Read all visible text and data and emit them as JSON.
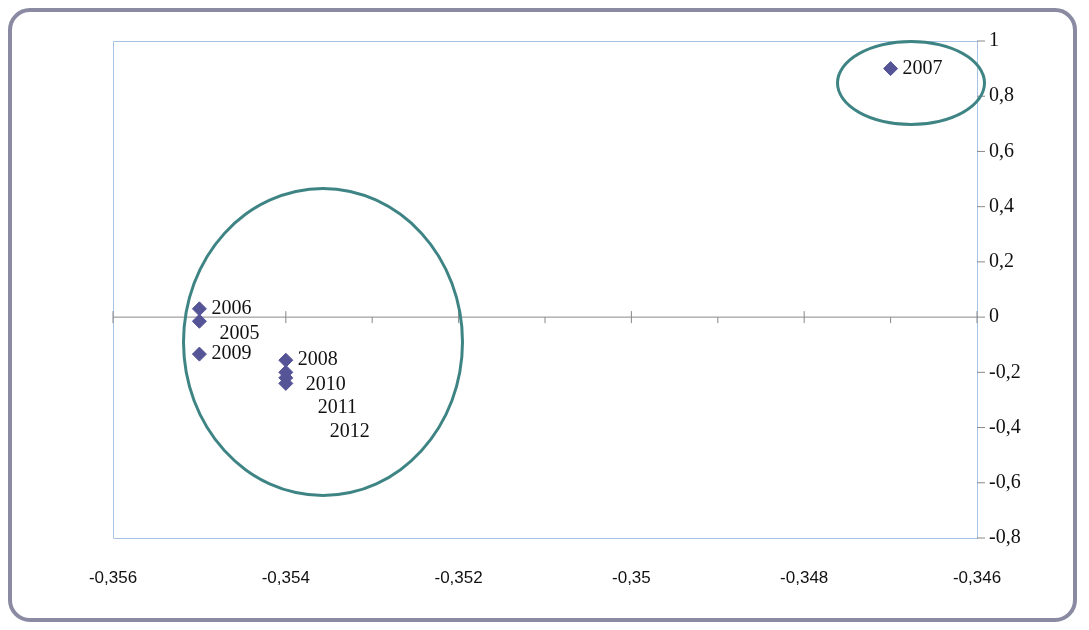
{
  "chart_data": {
    "type": "scatter",
    "x": [
      -0.355,
      -0.355,
      -0.347,
      -0.354,
      -0.355,
      -0.354,
      -0.354,
      -0.354
    ],
    "values": [
      -0.015,
      0.03,
      0.9,
      -0.156,
      -0.134,
      -0.2,
      -0.22,
      -0.24
    ],
    "color": "#545497",
    "ref_lines": [
      {
        "axis": "y",
        "value": 0,
        "color": "#888888"
      }
    ],
    "marker": "diamond",
    "grid": false,
    "legend": false,
    "xlim": [
      -0.356,
      -0.346
    ],
    "xticks": [
      {
        "value": -0.356,
        "label": "-0,356"
      },
      {
        "value": -0.354,
        "label": "-0,354"
      },
      {
        "value": -0.352,
        "label": "-0,352"
      },
      {
        "value": -0.35,
        "label": "-0,35"
      },
      {
        "value": -0.348,
        "label": "-0,348"
      },
      {
        "value": -0.346,
        "label": "-0,346"
      }
    ],
    "ylim": [
      -0.8,
      1
    ],
    "yticks": [
      {
        "value": 1,
        "label": "1"
      },
      {
        "value": 0.8,
        "label": "0,8"
      },
      {
        "value": 0.6,
        "label": "0,6"
      },
      {
        "value": 0.4,
        "label": "0,4"
      },
      {
        "value": 0.2,
        "label": "0,2"
      },
      {
        "value": 0,
        "label": "0"
      },
      {
        "value": -0.2,
        "label": "-0,2"
      },
      {
        "value": -0.4,
        "label": "-0,4"
      },
      {
        "value": -0.6,
        "label": "-0,6"
      },
      {
        "value": -0.8,
        "label": "-0,8"
      }
    ],
    "annotations": [
      {
        "text": "2005",
        "x": -0.355,
        "y": -0.015
      },
      {
        "text": "2006",
        "x": -0.355,
        "y": 0.03
      },
      {
        "text": "2007",
        "x": -0.347,
        "y": 0.9
      },
      {
        "text": "2008",
        "x": -0.354,
        "y": -0.156
      },
      {
        "text": "2009",
        "x": -0.355,
        "y": -0.134
      },
      {
        "text": "2010",
        "x": -0.354,
        "y": -0.2
      },
      {
        "text": "2011",
        "x": -0.354,
        "y": -0.22
      },
      {
        "text": "2012",
        "x": -0.354,
        "y": -0.24
      }
    ]
  }
}
